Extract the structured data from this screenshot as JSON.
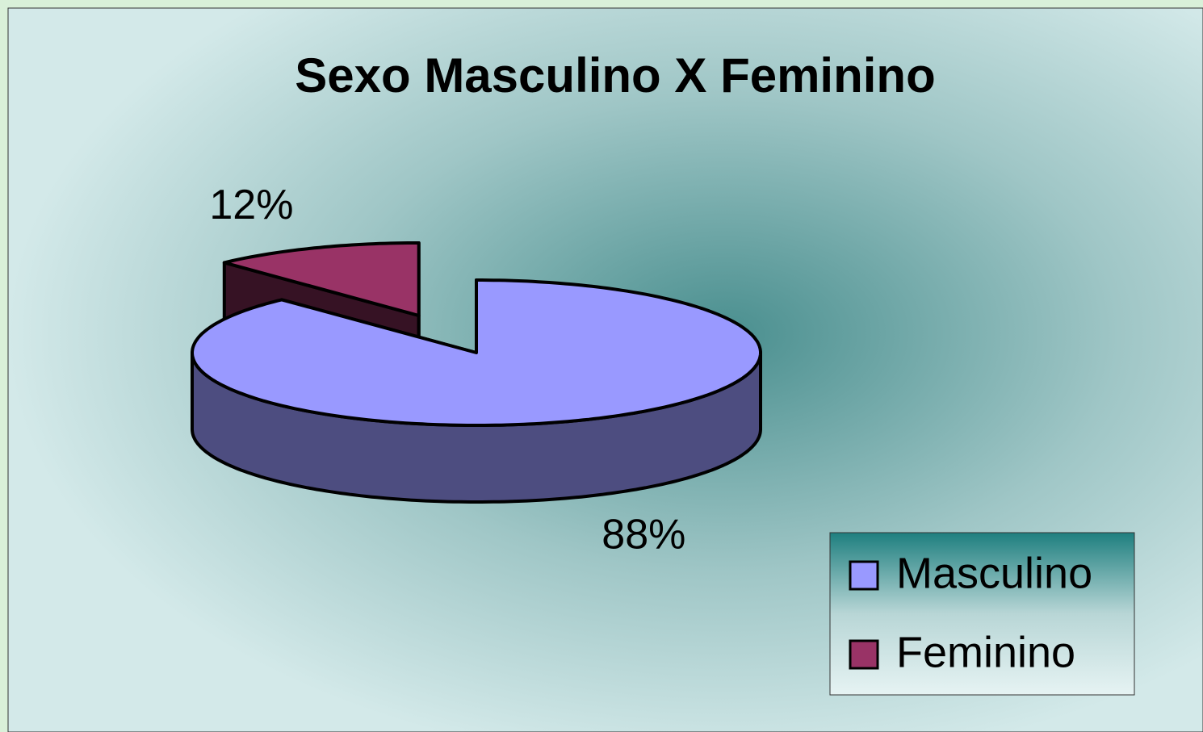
{
  "chart_data": {
    "type": "pie",
    "title": "Sexo Masculino X Feminino",
    "categories": [
      "Masculino",
      "Feminino"
    ],
    "values": [
      88,
      12
    ],
    "value_labels": [
      "88%",
      "12%"
    ],
    "colors": [
      "#9999ff",
      "#993366"
    ],
    "explode": [
      0,
      1
    ],
    "legend": "right"
  }
}
